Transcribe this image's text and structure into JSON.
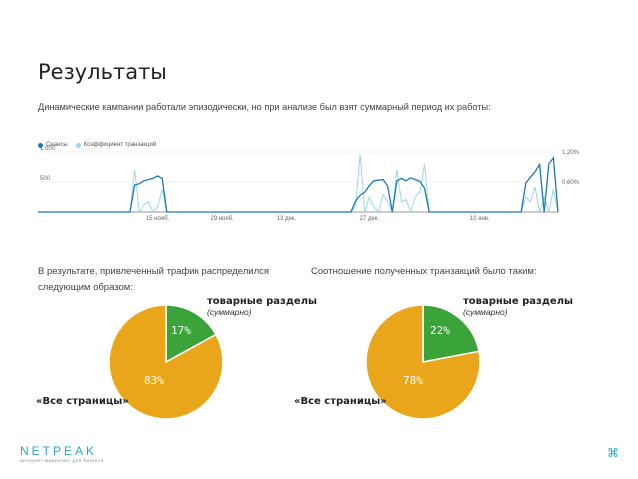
{
  "title": "Результаты",
  "subtitle": "Динамические кампании работали эпизодически, но при анализе был взят суммарный период их работы:",
  "chart_data": {
    "type": "line",
    "legend": [
      "Сеансы",
      "Коэффициент транзакций"
    ],
    "legend_placement": "top-left",
    "x_ticks": [
      "15 нояб.",
      "29 нояб.",
      "13 дек.",
      "27 дек.",
      "10 янв."
    ],
    "y_left_ticks": [
      "1 000",
      "500"
    ],
    "y_right_ticks": [
      "1,20%",
      "0,60%"
    ],
    "ylim_left": [
      0,
      1000
    ],
    "ylim_right": [
      0,
      1.2
    ],
    "grid": true,
    "series": [
      {
        "name": "Сеансы",
        "color": "#1f78b4",
        "values": [
          0,
          0,
          0,
          0,
          0,
          0,
          0,
          0,
          0,
          0,
          0,
          0,
          0,
          0,
          0,
          0,
          0,
          0,
          0,
          0,
          0,
          450,
          470,
          520,
          540,
          560,
          600,
          560,
          0,
          0,
          0,
          0,
          0,
          0,
          0,
          0,
          0,
          0,
          0,
          0,
          0,
          0,
          0,
          0,
          0,
          0,
          0,
          0,
          0,
          0,
          0,
          0,
          0,
          0,
          0,
          0,
          0,
          0,
          0,
          0,
          0,
          0,
          0,
          0,
          0,
          0,
          0,
          0,
          0,
          180,
          280,
          330,
          440,
          520,
          530,
          540,
          430,
          0,
          520,
          560,
          520,
          570,
          540,
          510,
          400,
          0,
          0,
          0,
          0,
          0,
          0,
          0,
          0,
          0,
          0,
          0,
          0,
          0,
          0,
          0,
          0,
          0,
          0,
          0,
          0,
          0,
          480,
          580,
          670,
          790,
          0,
          800,
          900,
          0
        ],
        "color_key": "dark"
      },
      {
        "name": "Коэффициент транзакций",
        "color": "#9dd8ea",
        "values": [
          0,
          0,
          0,
          0,
          0,
          0,
          0,
          0,
          0,
          0,
          0,
          0,
          0,
          0,
          0,
          0,
          0,
          0,
          0,
          0,
          0,
          0.85,
          0,
          0.15,
          0.2,
          0,
          0.1,
          0.45,
          0,
          0,
          0,
          0,
          0,
          0,
          0,
          0,
          0,
          0,
          0,
          0,
          0,
          0,
          0,
          0,
          0,
          0,
          0,
          0,
          0,
          0,
          0,
          0,
          0,
          0,
          0,
          0,
          0,
          0,
          0,
          0,
          0,
          0,
          0,
          0,
          0,
          0,
          0,
          0,
          0,
          0.1,
          1.15,
          0,
          0.3,
          0.1,
          0,
          0.35,
          0.2,
          0,
          0.85,
          0.2,
          0.25,
          0,
          0.3,
          0.4,
          0.95,
          0,
          0,
          0,
          0,
          0,
          0,
          0,
          0,
          0,
          0,
          0,
          0,
          0,
          0,
          0,
          0,
          0,
          0,
          0,
          0,
          0,
          0.3,
          0.2,
          0.5,
          0,
          0.3,
          0,
          0.45,
          0
        ]
      }
    ]
  },
  "left_text": "В результате, привлеченный трафик распределился следующим образом:",
  "right_text": "Соотношение полученных транзакций было таким:",
  "pie_left": {
    "slices": [
      {
        "label": "товарные разделы",
        "value": 17,
        "color": "#3aa339"
      },
      {
        "label": "«Все страницы»",
        "value": 83,
        "color": "#eaa61b"
      }
    ],
    "label_main": "товарные разделы",
    "label_sub": "(суммарно)",
    "label_other": "«Все страницы»",
    "pct_small": "17%",
    "pct_big": "83%"
  },
  "pie_right": {
    "slices": [
      {
        "label": "товарные разделы",
        "value": 22,
        "color": "#3aa339"
      },
      {
        "label": "«Все страницы»",
        "value": 78,
        "color": "#eaa61b"
      }
    ],
    "label_main": "товарные разделы",
    "label_sub": "(суммарно)",
    "label_other": "«Все страницы»",
    "pct_small": "22%",
    "pct_big": "78%"
  },
  "logo": {
    "name": "NETPEAK",
    "tagline": "интернет-маркетинг для бизнеса"
  },
  "cmd_icon": "⌘"
}
